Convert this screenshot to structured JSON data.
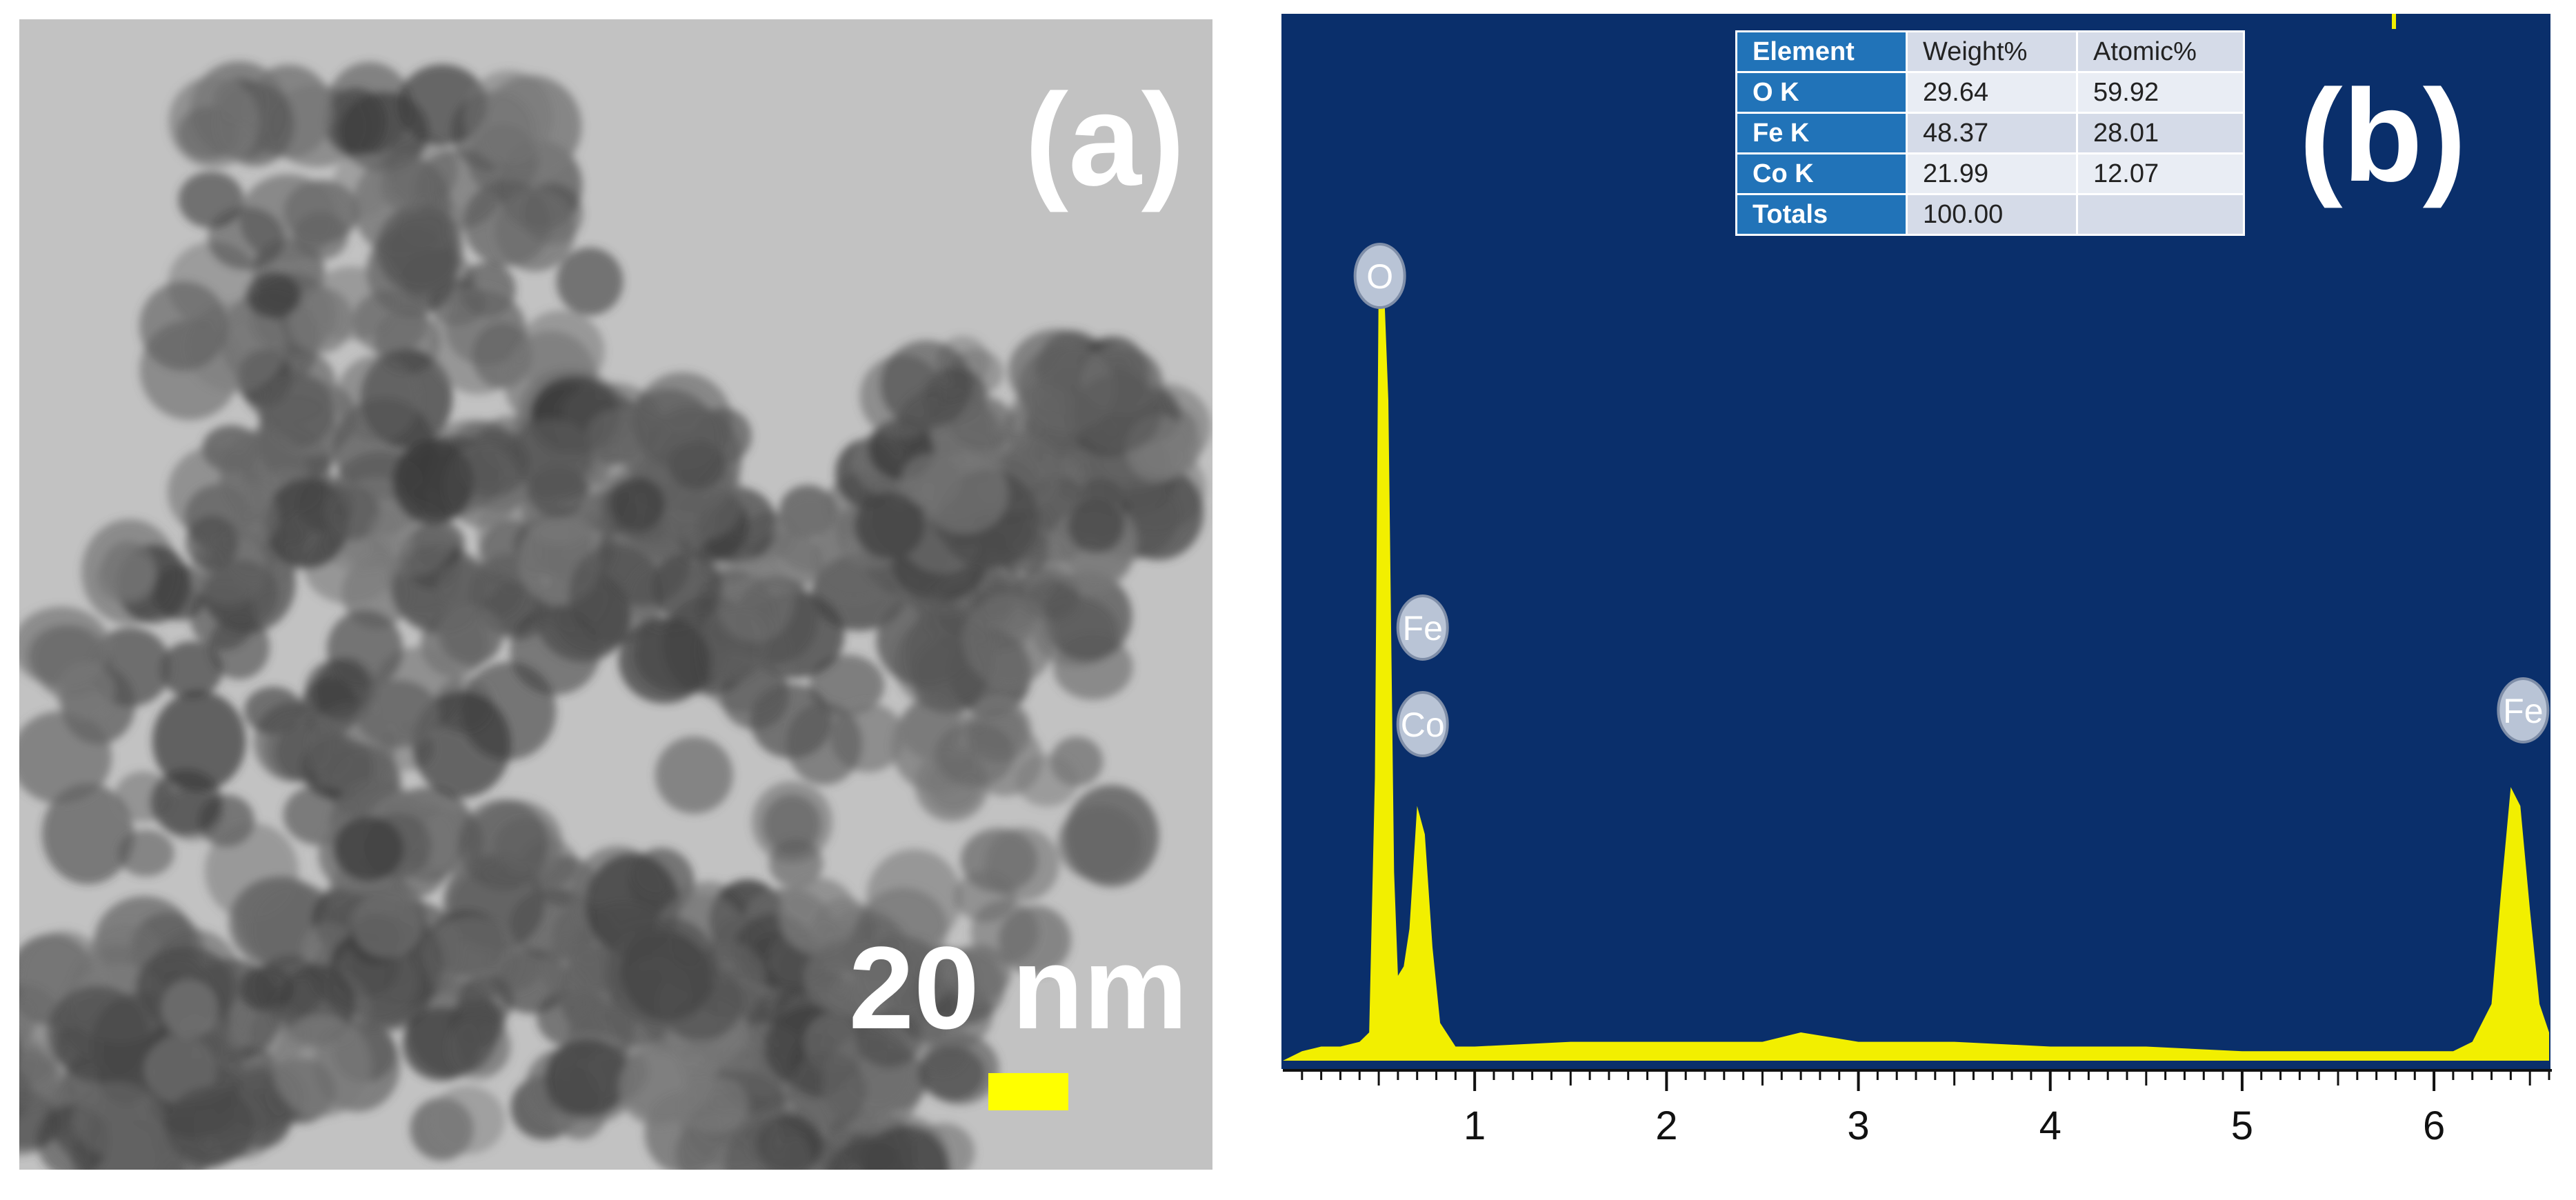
{
  "panel_a": {
    "label": "(a)",
    "scale_bar_text": "20 nm",
    "scale_bar_color": "#ffff00"
  },
  "panel_b": {
    "label": "(b)",
    "table": {
      "headers": [
        "Element",
        "Weight%",
        "Atomic%"
      ],
      "rows": [
        [
          "O K",
          "29.64",
          "59.92"
        ],
        [
          "Fe K",
          "48.37",
          "28.01"
        ],
        [
          "Co K",
          "21.99",
          "12.07"
        ],
        [
          "Totals",
          "100.00",
          ""
        ]
      ]
    },
    "colors": {
      "background": "#0a2f6b",
      "spectrum": "#f2ef00",
      "header": "#2173b8"
    }
  },
  "chart_data": {
    "type": "area",
    "title": "",
    "xlabel": "",
    "ylabel": "",
    "xlim": [
      0,
      6.6
    ],
    "ylim": [
      0,
      100
    ],
    "x_ticks": [
      1,
      2,
      3,
      4,
      5,
      6
    ],
    "grid": false,
    "series": [
      {
        "x": [
          0.0,
          0.1,
          0.2,
          0.3,
          0.4,
          0.45,
          0.48,
          0.5,
          0.52,
          0.55,
          0.58,
          0.6,
          0.63,
          0.66,
          0.7,
          0.74,
          0.78,
          0.82,
          0.9,
          1.0,
          1.5,
          2.0,
          2.5,
          2.7,
          3.0,
          3.5,
          4.0,
          4.5,
          5.0,
          5.5,
          6.0,
          6.1,
          6.2,
          6.3,
          6.35,
          6.4,
          6.45,
          6.5,
          6.55,
          6.6
        ],
        "values": [
          0,
          1,
          1.5,
          1.5,
          2,
          3,
          30,
          84,
          86,
          70,
          20,
          9,
          10,
          14,
          27,
          24,
          12,
          4,
          1.5,
          1.5,
          2,
          2,
          2,
          3,
          2,
          2,
          1.5,
          1.5,
          1,
          1,
          1,
          1,
          2,
          6,
          18,
          29,
          27,
          16,
          6,
          3
        ]
      }
    ],
    "peak_labels": [
      {
        "text": "O",
        "x": 0.52
      },
      {
        "text": "Fe",
        "x": 0.7
      },
      {
        "text": "Co",
        "x": 0.7
      },
      {
        "text": "Fe",
        "x": 6.4
      }
    ]
  }
}
